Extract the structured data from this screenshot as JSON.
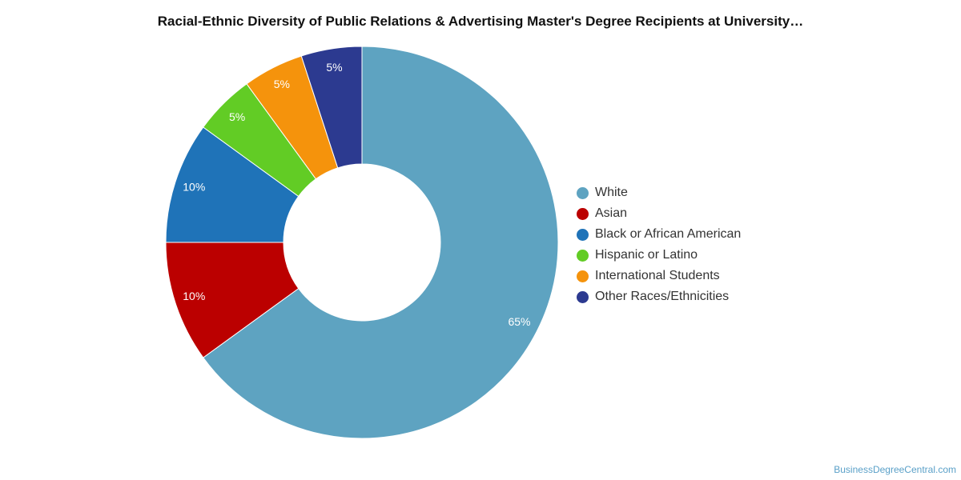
{
  "chart_data": {
    "type": "pie",
    "donut": true,
    "title": "Racial-Ethnic Diversity of Public Relations & Advertising Master's Degree Recipients at University…",
    "legend_position": "right",
    "slices": [
      {
        "name": "White",
        "value": 65,
        "label": "65%",
        "color": "#5ea3c1"
      },
      {
        "name": "Asian",
        "value": 10,
        "label": "10%",
        "color": "#bb0000"
      },
      {
        "name": "Black or African American",
        "value": 10,
        "label": "10%",
        "color": "#1f73b8"
      },
      {
        "name": "Hispanic or Latino",
        "value": 5,
        "label": "5%",
        "color": "#62cc25"
      },
      {
        "name": "International Students",
        "value": 5,
        "label": "5%",
        "color": "#f5930c"
      },
      {
        "name": "Other Races/Ethnicities",
        "value": 5,
        "label": "5%",
        "color": "#2c3a90"
      }
    ]
  },
  "credit": "BusinessDegreeCentral.com"
}
